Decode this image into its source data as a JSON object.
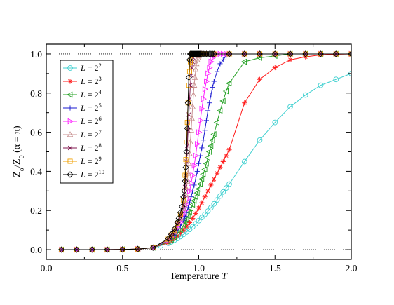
{
  "chart_data": {
    "type": "line",
    "xlabel": "Temperature",
    "xlabel_var": "T",
    "ylabel_main": "Z",
    "ylabel_sub1": "α",
    "ylabel_mid": "/Z",
    "ylabel_sub2": "0",
    "ylabel_paren": " (α = π)",
    "xlim": [
      0.0,
      2.0
    ],
    "ylim": [
      -0.05,
      1.05
    ],
    "x_ticks": [
      0.0,
      0.5,
      1.0,
      1.5,
      2.0
    ],
    "x_tick_labels": [
      "0.0",
      "0.5",
      "1.0",
      "1.5",
      "2.0"
    ],
    "y_ticks": [
      0.0,
      0.2,
      0.4,
      0.6,
      0.8,
      1.0
    ],
    "y_tick_labels": [
      "0.0",
      "0.2",
      "0.4",
      "0.6",
      "0.8",
      "1.0"
    ],
    "reference_lines_y": [
      0.0,
      1.0
    ],
    "legend_position": "upper-left",
    "series": [
      {
        "label_pre": "L = 2",
        "label_exp": "2",
        "color": "#40d0d0",
        "marker": "circle",
        "size": 2,
        "x": [
          0.1,
          0.2,
          0.3,
          0.4,
          0.5,
          0.6,
          0.7,
          0.75,
          0.8,
          0.82,
          0.84,
          0.86,
          0.88,
          0.9,
          0.92,
          0.94,
          0.96,
          0.98,
          1.0,
          1.02,
          1.04,
          1.06,
          1.08,
          1.1,
          1.12,
          1.14,
          1.16,
          1.18,
          1.2,
          1.3,
          1.4,
          1.5,
          1.6,
          1.7,
          1.8,
          1.9,
          2.0
        ],
        "y": [
          0,
          0,
          0,
          0,
          0.001,
          0.003,
          0.01,
          0.02,
          0.033,
          0.04,
          0.048,
          0.057,
          0.067,
          0.078,
          0.09,
          0.103,
          0.117,
          0.132,
          0.148,
          0.164,
          0.18,
          0.197,
          0.215,
          0.234,
          0.254,
          0.274,
          0.295,
          0.315,
          0.335,
          0.45,
          0.56,
          0.65,
          0.73,
          0.79,
          0.84,
          0.87,
          0.9
        ]
      },
      {
        "label_pre": "L = 2",
        "label_exp": "3",
        "color": "#ff1a1a",
        "marker": "star",
        "size": 3,
        "x": [
          0.1,
          0.2,
          0.3,
          0.4,
          0.5,
          0.6,
          0.7,
          0.8,
          0.82,
          0.84,
          0.86,
          0.88,
          0.9,
          0.92,
          0.94,
          0.96,
          0.98,
          1.0,
          1.02,
          1.04,
          1.06,
          1.08,
          1.1,
          1.12,
          1.14,
          1.16,
          1.18,
          1.2,
          1.3,
          1.4,
          1.5,
          1.6,
          1.7,
          1.8,
          1.9,
          2.0
        ],
        "y": [
          0,
          0,
          0,
          0,
          0.001,
          0.003,
          0.01,
          0.035,
          0.045,
          0.057,
          0.07,
          0.085,
          0.1,
          0.118,
          0.138,
          0.16,
          0.185,
          0.212,
          0.24,
          0.27,
          0.3,
          0.33,
          0.36,
          0.39,
          0.42,
          0.45,
          0.48,
          0.51,
          0.75,
          0.87,
          0.93,
          0.97,
          0.985,
          0.995,
          0.998,
          1.0
        ]
      },
      {
        "label_pre": "L = 2",
        "label_exp": "4",
        "color": "#22a022",
        "marker": "triangle-left",
        "size": 4,
        "x": [
          0.1,
          0.2,
          0.3,
          0.4,
          0.5,
          0.6,
          0.7,
          0.8,
          0.82,
          0.84,
          0.86,
          0.88,
          0.9,
          0.91,
          0.92,
          0.93,
          0.94,
          0.95,
          0.96,
          0.97,
          0.98,
          0.99,
          1.0,
          1.01,
          1.02,
          1.03,
          1.04,
          1.05,
          1.06,
          1.07,
          1.08,
          1.09,
          1.1,
          1.12,
          1.14,
          1.16,
          1.18,
          1.2,
          1.3,
          1.4,
          1.5,
          1.6,
          1.7,
          1.8,
          1.9,
          2.0
        ],
        "y": [
          0,
          0,
          0,
          0,
          0.001,
          0.003,
          0.01,
          0.04,
          0.05,
          0.063,
          0.08,
          0.1,
          0.125,
          0.14,
          0.155,
          0.172,
          0.19,
          0.21,
          0.23,
          0.25,
          0.27,
          0.29,
          0.31,
          0.335,
          0.36,
          0.385,
          0.41,
          0.44,
          0.47,
          0.5,
          0.53,
          0.56,
          0.59,
          0.65,
          0.71,
          0.76,
          0.81,
          0.85,
          0.96,
          0.98,
          0.99,
          1.0,
          1.0,
          1.0,
          1.0,
          1.0
        ]
      },
      {
        "label_pre": "L = 2",
        "label_exp": "5",
        "color": "#1a1ad0",
        "marker": "plus",
        "size": 5,
        "x": [
          0.1,
          0.2,
          0.3,
          0.4,
          0.5,
          0.6,
          0.7,
          0.8,
          0.82,
          0.84,
          0.86,
          0.88,
          0.9,
          0.91,
          0.92,
          0.93,
          0.94,
          0.95,
          0.96,
          0.97,
          0.98,
          0.99,
          1.0,
          1.01,
          1.02,
          1.03,
          1.04,
          1.05,
          1.06,
          1.07,
          1.08,
          1.09,
          1.1,
          1.12,
          1.14,
          1.16,
          1.18,
          1.2,
          1.3,
          1.4,
          1.5,
          1.6,
          1.7,
          1.8,
          1.9,
          2.0
        ],
        "y": [
          0,
          0,
          0,
          0,
          0.001,
          0.003,
          0.01,
          0.045,
          0.06,
          0.075,
          0.095,
          0.12,
          0.15,
          0.17,
          0.19,
          0.215,
          0.24,
          0.27,
          0.3,
          0.33,
          0.36,
          0.4,
          0.44,
          0.48,
          0.52,
          0.56,
          0.61,
          0.66,
          0.71,
          0.75,
          0.79,
          0.83,
          0.86,
          0.91,
          0.95,
          0.97,
          0.99,
          1.0,
          1.0,
          1.0,
          1.0,
          1.0,
          1.0,
          1.0,
          1.0,
          1.0
        ]
      },
      {
        "label_pre": "L = 2",
        "label_exp": "6",
        "color": "#ff20ff",
        "marker": "triangle-right",
        "size": 6,
        "x": [
          0.1,
          0.2,
          0.3,
          0.4,
          0.5,
          0.6,
          0.7,
          0.8,
          0.82,
          0.84,
          0.86,
          0.88,
          0.9,
          0.91,
          0.92,
          0.93,
          0.94,
          0.95,
          0.96,
          0.97,
          0.98,
          0.99,
          1.0,
          1.01,
          1.02,
          1.03,
          1.04,
          1.05,
          1.06,
          1.07,
          1.08,
          1.09,
          1.1,
          1.12,
          1.14,
          1.16,
          1.18,
          1.2,
          1.3,
          1.4,
          1.5,
          1.6,
          1.7,
          1.8,
          1.9,
          2.0
        ],
        "y": [
          0,
          0,
          0,
          0,
          0.001,
          0.003,
          0.01,
          0.048,
          0.065,
          0.085,
          0.11,
          0.14,
          0.18,
          0.2,
          0.23,
          0.26,
          0.3,
          0.34,
          0.38,
          0.43,
          0.48,
          0.54,
          0.6,
          0.66,
          0.72,
          0.77,
          0.82,
          0.86,
          0.9,
          0.93,
          0.96,
          0.98,
          0.99,
          1.0,
          1.0,
          1.0,
          1.0,
          1.0,
          1.0,
          1.0,
          1.0,
          1.0,
          1.0,
          1.0,
          1.0,
          1.0
        ]
      },
      {
        "label_pre": "L = 2",
        "label_exp": "7",
        "color": "#c89090",
        "marker": "triangle-up",
        "size": 7,
        "x": [
          0.1,
          0.2,
          0.3,
          0.4,
          0.5,
          0.6,
          0.7,
          0.8,
          0.82,
          0.84,
          0.86,
          0.88,
          0.9,
          0.905,
          0.91,
          0.915,
          0.92,
          0.925,
          0.93,
          0.935,
          0.94,
          0.945,
          0.95,
          0.955,
          0.96,
          0.965,
          0.97,
          0.975,
          0.98,
          0.985,
          0.99,
          0.995,
          1.0,
          1.01,
          1.02,
          1.03,
          1.04,
          1.05,
          1.1,
          1.2,
          1.3,
          1.4,
          1.5,
          1.6,
          1.7,
          1.8,
          1.9,
          2.0
        ],
        "y": [
          0,
          0,
          0,
          0,
          0.001,
          0.003,
          0.01,
          0.05,
          0.07,
          0.09,
          0.12,
          0.16,
          0.21,
          0.23,
          0.25,
          0.28,
          0.31,
          0.35,
          0.39,
          0.44,
          0.49,
          0.55,
          0.61,
          0.67,
          0.73,
          0.79,
          0.84,
          0.88,
          0.92,
          0.95,
          0.97,
          0.98,
          0.99,
          1.0,
          1.0,
          1.0,
          1.0,
          1.0,
          1.0,
          1.0,
          1.0,
          1.0,
          1.0,
          1.0,
          1.0,
          1.0,
          1.0,
          1.0
        ]
      },
      {
        "label_pre": "L = 2",
        "label_exp": "8",
        "color": "#801a50",
        "marker": "x",
        "size": 8,
        "x": [
          0.1,
          0.2,
          0.3,
          0.4,
          0.5,
          0.6,
          0.7,
          0.8,
          0.82,
          0.84,
          0.86,
          0.88,
          0.9,
          0.905,
          0.91,
          0.915,
          0.92,
          0.925,
          0.93,
          0.935,
          0.94,
          0.945,
          0.95,
          0.955,
          0.96,
          0.965,
          0.97,
          0.975,
          0.98,
          0.985,
          0.99,
          0.995,
          1.0,
          1.01,
          1.02,
          1.03,
          1.04,
          1.05,
          1.1,
          1.2,
          1.3,
          1.4,
          1.5,
          1.6,
          1.7,
          1.8,
          1.9,
          2.0
        ],
        "y": [
          0,
          0,
          0,
          0,
          0.001,
          0.003,
          0.01,
          0.052,
          0.072,
          0.095,
          0.13,
          0.17,
          0.23,
          0.27,
          0.32,
          0.38,
          0.45,
          0.53,
          0.61,
          0.69,
          0.77,
          0.84,
          0.89,
          0.93,
          0.96,
          0.98,
          0.99,
          1.0,
          1.0,
          1.0,
          1.0,
          1.0,
          1.0,
          1.0,
          1.0,
          1.0,
          1.0,
          1.0,
          1.0,
          1.0,
          1.0,
          1.0,
          1.0,
          1.0,
          1.0,
          1.0,
          1.0,
          1.0
        ]
      },
      {
        "label_pre": "L = 2",
        "label_exp": "9",
        "color": "#f0a000",
        "marker": "square",
        "size": 9,
        "x": [
          0.1,
          0.2,
          0.3,
          0.4,
          0.5,
          0.6,
          0.7,
          0.8,
          0.82,
          0.84,
          0.86,
          0.88,
          0.9,
          0.905,
          0.91,
          0.915,
          0.92,
          0.925,
          0.93,
          0.935,
          0.94,
          0.945,
          0.95,
          0.955,
          0.96,
          0.965,
          0.97,
          0.975,
          0.98,
          0.985,
          0.99,
          0.995,
          1.0,
          1.01,
          1.02,
          1.03,
          1.04,
          1.05,
          1.1,
          1.2,
          1.3,
          1.4,
          1.5,
          1.6,
          1.7,
          1.8,
          1.9,
          2.0
        ],
        "y": [
          0,
          0,
          0,
          0,
          0.001,
          0.003,
          0.01,
          0.054,
          0.075,
          0.1,
          0.135,
          0.18,
          0.25,
          0.31,
          0.38,
          0.46,
          0.55,
          0.65,
          0.75,
          0.84,
          0.91,
          0.96,
          0.99,
          1.0,
          1.0,
          1.0,
          1.0,
          1.0,
          1.0,
          1.0,
          1.0,
          1.0,
          1.0,
          1.0,
          1.0,
          1.0,
          1.0,
          1.0,
          1.0,
          1.0,
          1.0,
          1.0,
          1.0,
          1.0,
          1.0,
          1.0,
          1.0,
          1.0
        ]
      },
      {
        "label_pre": "L = 2",
        "label_exp": "10",
        "color": "#000000",
        "marker": "diamond",
        "size": 10,
        "x": [
          0.1,
          0.2,
          0.3,
          0.4,
          0.5,
          0.6,
          0.7,
          0.8,
          0.82,
          0.84,
          0.86,
          0.87,
          0.88,
          0.89,
          0.9,
          0.905,
          0.91,
          0.915,
          0.92,
          0.925,
          0.93,
          0.935,
          0.94,
          0.945,
          0.95,
          0.955,
          0.96,
          0.965,
          0.97,
          0.975,
          0.98,
          0.985,
          0.99,
          0.995,
          1.0,
          1.005,
          1.01,
          1.02,
          1.03,
          1.04,
          1.05,
          1.06,
          1.07,
          1.08,
          1.09,
          1.1,
          1.2,
          1.3,
          1.4,
          1.5,
          1.6,
          1.7,
          1.8,
          1.9,
          2.0
        ],
        "y": [
          0,
          0,
          0,
          0,
          0.001,
          0.003,
          0.01,
          0.056,
          0.078,
          0.105,
          0.14,
          0.16,
          0.19,
          0.22,
          0.27,
          0.3,
          0.35,
          0.42,
          0.5,
          0.62,
          0.75,
          0.88,
          0.97,
          1.0,
          1.0,
          1.0,
          1.0,
          1.0,
          1.0,
          1.0,
          1.0,
          1.0,
          1.0,
          1.0,
          1.0,
          1.0,
          1.0,
          1.0,
          1.0,
          1.0,
          1.0,
          1.0,
          1.0,
          1.0,
          1.0,
          1.0,
          1.0,
          1.0,
          1.0,
          1.0,
          1.0,
          1.0,
          1.0,
          1.0,
          1.0
        ]
      }
    ]
  }
}
